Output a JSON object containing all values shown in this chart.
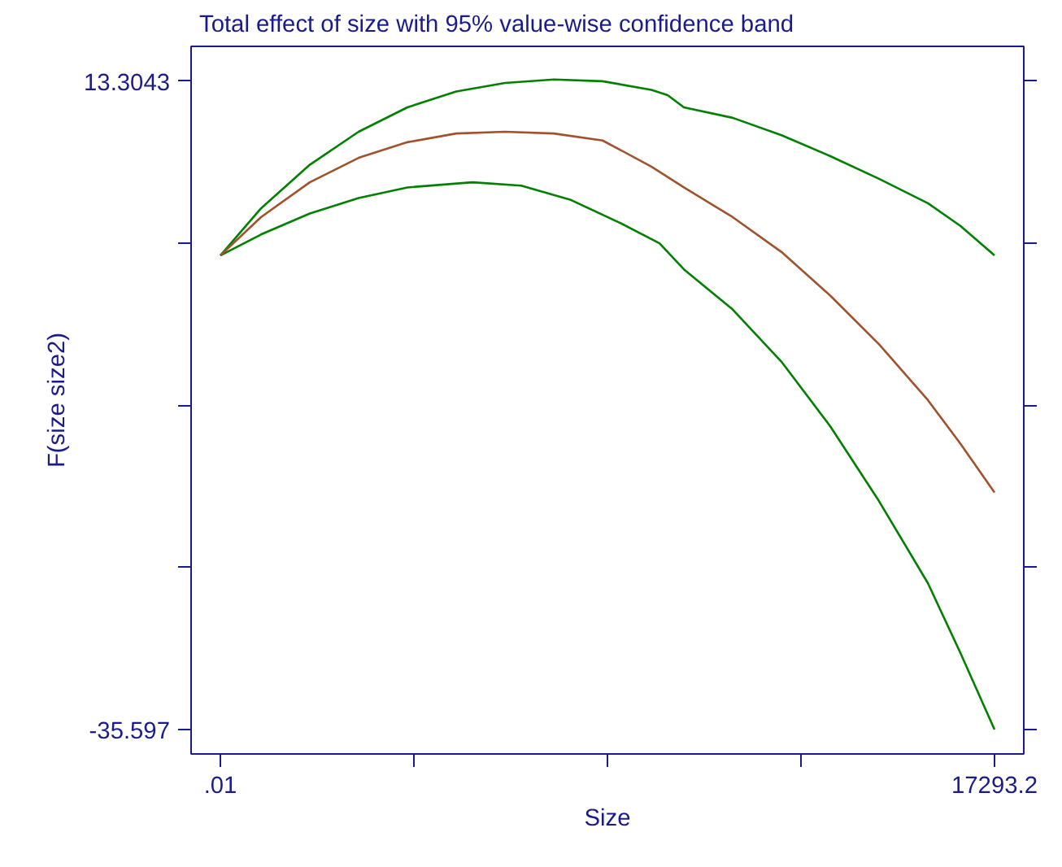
{
  "chart_data": {
    "type": "line",
    "title": "Total effect of size with 95% value-wise confidence band",
    "xlabel": "Size",
    "ylabel": "F(size size2)",
    "xlim": [
      -654,
      17947
    ],
    "ylim": [
      -37.44,
      15.93
    ],
    "xticks": [
      {
        "value": 0.01,
        "label": ".01"
      },
      {
        "value": 4323.3,
        "label": null
      },
      {
        "value": 8646.6,
        "label": null
      },
      {
        "value": 12969.9,
        "label": null
      },
      17293.2
    ],
    "yticks": [
      {
        "value": 13.3043,
        "label": "13.3043"
      },
      {
        "value": 1.079,
        "label": null
      },
      {
        "value": -11.146,
        "label": null
      },
      {
        "value": -23.372,
        "label": null
      },
      {
        "value": -35.597,
        "label": "-35.597"
      }
    ],
    "grid": false,
    "series": [
      {
        "color": "#008000",
        "x": [
          0.01,
          908,
          1998,
          3088,
          4178,
          5268,
          6358,
          7448,
          8538,
          9628,
          9991,
          10355,
          11445,
          12535,
          13625,
          14715,
          15805,
          16531,
          17293.2
        ],
        "values": [
          0.16,
          3.71,
          7.0,
          9.49,
          11.33,
          12.52,
          13.17,
          13.43,
          13.3,
          12.65,
          12.25,
          11.33,
          10.54,
          9.23,
          7.65,
          5.94,
          4.1,
          2.39,
          0.16
        ]
      },
      {
        "color": "#008000",
        "x": [
          0.01,
          908,
          1998,
          3088,
          4178,
          5631,
          6721,
          7811,
          8901,
          9809,
          10355,
          11445,
          12535,
          13625,
          14715,
          15805,
          16531,
          17293.2
        ],
        "values": [
          0.16,
          1.74,
          3.32,
          4.49,
          5.29,
          5.68,
          5.42,
          4.37,
          2.66,
          1.08,
          -0.89,
          -3.92,
          -7.86,
          -12.73,
          -18.38,
          -24.56,
          -29.82,
          -35.6
        ]
      },
      {
        "color": "#a0522d",
        "x": [
          0.01,
          908,
          1998,
          3088,
          4178,
          5268,
          6358,
          7448,
          8538,
          8901,
          9628,
          10355,
          11445,
          12535,
          13625,
          14715,
          15805,
          16531,
          17293.2
        ],
        "values": [
          0.16,
          3.05,
          5.68,
          7.52,
          8.7,
          9.36,
          9.49,
          9.36,
          8.83,
          8.18,
          6.86,
          5.29,
          3.05,
          0.42,
          -2.87,
          -6.55,
          -10.75,
          -14.04,
          -17.72
        ]
      }
    ]
  }
}
